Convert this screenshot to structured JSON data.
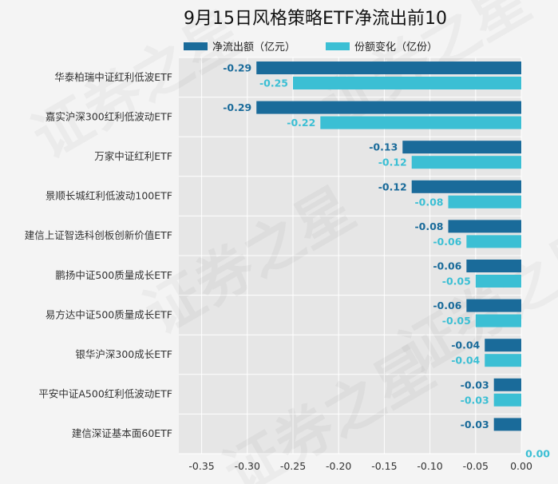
{
  "chart_data": {
    "type": "bar",
    "orientation": "horizontal",
    "title": "9月15日风格策略ETF净流出前10",
    "categories": [
      "华泰柏瑞中证红利低波ETF",
      "嘉实沪深300红利低波动ETF",
      "万家中证红利ETF",
      "景顺长城红利低波动100ETF",
      "建信上证智选科创板创新价值ETF",
      "鹏扬中证500质量成长ETF",
      "易方达中证500质量成长ETF",
      "银华沪深300成长ETF",
      "平安中证A500红利低波动ETF",
      "建信深证基本面60ETF"
    ],
    "series": [
      {
        "name": "净流出额（亿元）",
        "color": "#1a6b9a",
        "values": [
          -0.29,
          -0.29,
          -0.13,
          -0.12,
          -0.08,
          -0.06,
          -0.06,
          -0.04,
          -0.03,
          -0.03
        ],
        "labels": [
          "-0.29",
          "-0.29",
          "-0.13",
          "-0.12",
          "-0.08",
          "-0.06",
          "-0.06",
          "-0.04",
          "-0.03",
          "-0.03"
        ]
      },
      {
        "name": "份额变化（亿份）",
        "color": "#3bbfd4",
        "values": [
          -0.25,
          -0.22,
          -0.12,
          -0.08,
          -0.06,
          -0.05,
          -0.05,
          -0.04,
          -0.03,
          0.0
        ],
        "labels": [
          "-0.25",
          "-0.22",
          "-0.12",
          "-0.08",
          "-0.06",
          "-0.05",
          "-0.05",
          "-0.04",
          "-0.03",
          "0.00"
        ]
      }
    ],
    "xlim": [
      -0.375,
      0.0
    ],
    "xticks": [
      -0.35,
      -0.3,
      -0.25,
      -0.2,
      -0.15,
      -0.1,
      -0.05,
      0.0
    ],
    "xtick_labels": [
      "-0.35",
      "-0.30",
      "-0.25",
      "-0.20",
      "-0.15",
      "-0.10",
      "-0.05",
      "0.00"
    ],
    "grid": true,
    "legend_position": "top",
    "plot_background": "#e6e6e6",
    "watermark": "证券之星"
  }
}
